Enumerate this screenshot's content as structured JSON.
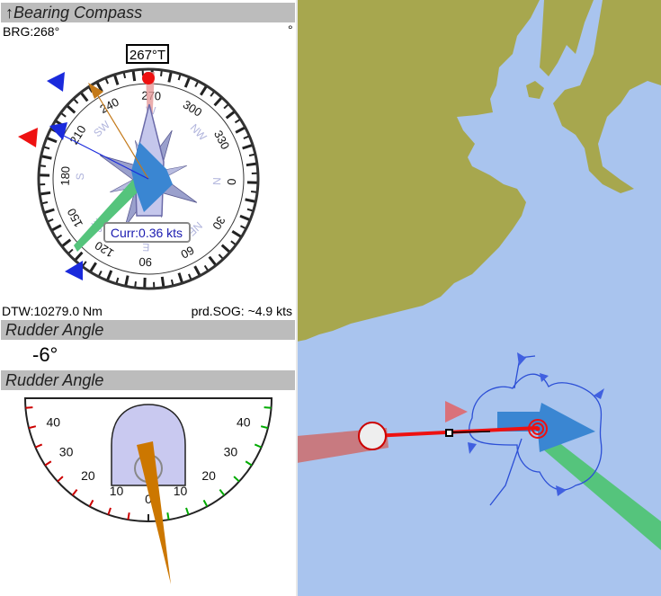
{
  "bearing_compass": {
    "title": "Bearing Compass",
    "title_arrow": "↑",
    "brg": "BRG:268°",
    "degree_unit": "°",
    "heading_box": "267°T",
    "current": "Curr:0.36 kts",
    "dtw": "DTW:10279.0 Nm",
    "prd_sog": "prd.SOG: ~4.9 kts",
    "scale_labels": [
      "0",
      "30",
      "60",
      "90",
      "120",
      "150",
      "180",
      "210",
      "240",
      "270",
      "300",
      "330"
    ],
    "cardinals": [
      "N",
      "NE",
      "E",
      "SE",
      "S",
      "SW",
      "W",
      "NW"
    ]
  },
  "rudder_value": {
    "title": "Rudder Angle",
    "value": "-6°"
  },
  "rudder_gauge": {
    "title": "Rudder Angle",
    "port_labels": [
      "40",
      "30",
      "20",
      "10"
    ],
    "starboard_labels": [
      "40",
      "30",
      "20",
      "10"
    ],
    "center_label": "0",
    "angle_deg": -6
  },
  "colors": {
    "land": "#a7a74e",
    "sea": "#a9c4ee",
    "header": "#bcbcbc",
    "port": "#cc0000",
    "starboard": "#00aa00",
    "needle": "#cc7700"
  }
}
